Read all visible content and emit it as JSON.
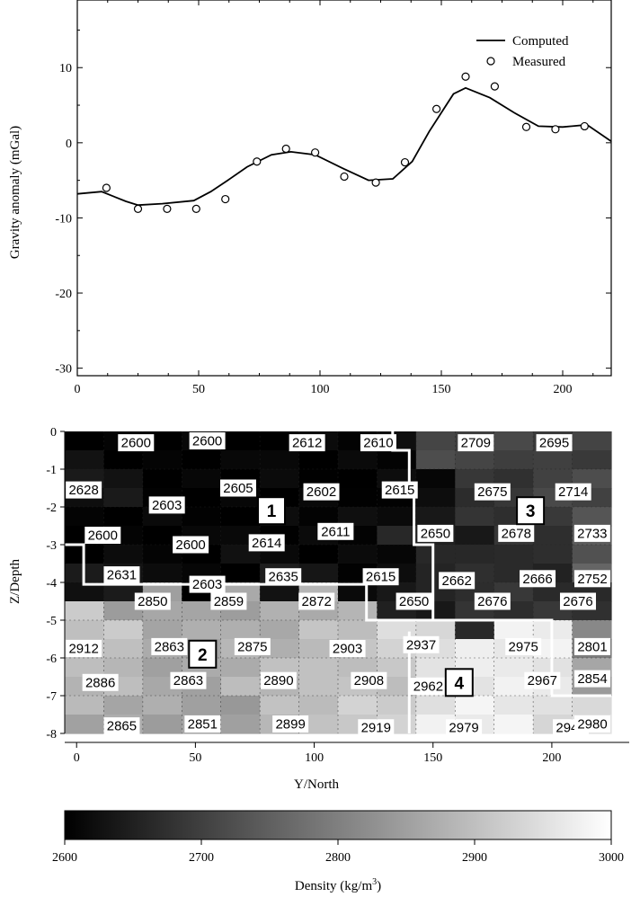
{
  "chart_data": [
    {
      "type": "line",
      "ylabel": "Gravity anomaly (mGal)",
      "xlim": [
        0,
        220
      ],
      "ylim": [
        -31,
        19
      ],
      "x_ticks": [
        "0",
        "50",
        "100",
        "150",
        "200"
      ],
      "y_ticks": [
        "10",
        "0",
        "-10",
        "-20",
        "-30"
      ],
      "legend": {
        "position": "top-right",
        "computed_label": "Computed",
        "measured_label": "Measured"
      },
      "series": [
        {
          "name": "Computed",
          "style": "line",
          "x": [
            0,
            10,
            20,
            25,
            35,
            48,
            55,
            62,
            70,
            80,
            88,
            98,
            110,
            120,
            130,
            138,
            145,
            150,
            155,
            160,
            170,
            180,
            190,
            200,
            210,
            220
          ],
          "y": [
            -6.8,
            -6.5,
            -7.8,
            -8.3,
            -8.1,
            -7.7,
            -6.5,
            -5.0,
            -3.2,
            -1.6,
            -1.2,
            -1.6,
            -3.5,
            -5.0,
            -4.8,
            -2.5,
            1.5,
            4.0,
            6.5,
            7.3,
            6.0,
            4.0,
            2.2,
            2.1,
            2.4,
            0.2
          ]
        },
        {
          "name": "Measured",
          "style": "scatter",
          "x": [
            12,
            25,
            37,
            49,
            61,
            74,
            86,
            98,
            110,
            123,
            135,
            148,
            160,
            172,
            185,
            197,
            209
          ],
          "y": [
            -6.0,
            -8.8,
            -8.8,
            -8.8,
            -7.5,
            -2.5,
            -0.8,
            -1.3,
            -4.5,
            -5.3,
            -2.6,
            4.5,
            8.8,
            7.5,
            2.1,
            1.8,
            2.2
          ]
        }
      ]
    },
    {
      "type": "heatmap",
      "xlabel": "Y/North",
      "ylabel": "Z/Depth",
      "xlim": [
        -5,
        225
      ],
      "ylim": [
        0,
        -8
      ],
      "x_ticks": [
        "0",
        "50",
        "100",
        "150",
        "200"
      ],
      "y_ticks": [
        "0",
        "-1",
        "-2",
        "-3",
        "-4",
        "-5",
        "-6",
        "-7",
        "-8"
      ],
      "cells": [
        {
          "x": 25,
          "z": -0.3,
          "v": 2600,
          "label": "2600"
        },
        {
          "x": 55,
          "z": -0.25,
          "v": 2600,
          "label": "2600"
        },
        {
          "x": 97,
          "z": -0.3,
          "v": 2612,
          "label": "2612"
        },
        {
          "x": 127,
          "z": -0.3,
          "v": 2610,
          "label": "2610"
        },
        {
          "x": 168,
          "z": -0.3,
          "v": 2709,
          "label": "2709"
        },
        {
          "x": 201,
          "z": -0.3,
          "v": 2695,
          "label": "2695"
        },
        {
          "x": 3,
          "z": -1.55,
          "v": 2628,
          "label": "2628"
        },
        {
          "x": 38,
          "z": -1.95,
          "v": 2603,
          "label": "2603"
        },
        {
          "x": 68,
          "z": -1.5,
          "v": 2605,
          "label": "2605"
        },
        {
          "x": 103,
          "z": -1.6,
          "v": 2602,
          "label": "2602"
        },
        {
          "x": 136,
          "z": -1.55,
          "v": 2615,
          "label": "2615"
        },
        {
          "x": 175,
          "z": -1.6,
          "v": 2675,
          "label": "2675"
        },
        {
          "x": 209,
          "z": -1.6,
          "v": 2714,
          "label": "2714"
        },
        {
          "x": 11,
          "z": -2.75,
          "v": 2600,
          "label": "2600"
        },
        {
          "x": 48,
          "z": -3.0,
          "v": 2600,
          "label": "2600"
        },
        {
          "x": 80,
          "z": -2.95,
          "v": 2614,
          "label": "2614"
        },
        {
          "x": 109,
          "z": -2.65,
          "v": 2611,
          "label": "2611"
        },
        {
          "x": 151,
          "z": -2.7,
          "v": 2650,
          "label": "2650"
        },
        {
          "x": 185,
          "z": -2.7,
          "v": 2678,
          "label": "2678"
        },
        {
          "x": 217,
          "z": -2.7,
          "v": 2733,
          "label": "2733"
        },
        {
          "x": 19,
          "z": -3.8,
          "v": 2631,
          "label": "2631"
        },
        {
          "x": 55,
          "z": -4.05,
          "v": 2603,
          "label": "2603"
        },
        {
          "x": 87,
          "z": -3.85,
          "v": 2635,
          "label": "2635"
        },
        {
          "x": 128,
          "z": -3.85,
          "v": 2615,
          "label": "2615"
        },
        {
          "x": 160,
          "z": -3.95,
          "v": 2662,
          "label": "2662"
        },
        {
          "x": 194,
          "z": -3.9,
          "v": 2666,
          "label": "2666"
        },
        {
          "x": 224,
          "z": -3.9,
          "v": 2752,
          "label": "2752"
        },
        {
          "x": 32,
          "z": -4.5,
          "v": 2850,
          "label": "2850"
        },
        {
          "x": 64,
          "z": -4.5,
          "v": 2859,
          "label": "2859"
        },
        {
          "x": 101,
          "z": -4.5,
          "v": 2872,
          "label": "2872"
        },
        {
          "x": 142,
          "z": -4.5,
          "v": 2650,
          "label": "2650"
        },
        {
          "x": 175,
          "z": -4.5,
          "v": 2676,
          "label": "2676"
        },
        {
          "x": 211,
          "z": -4.5,
          "v": 2676,
          "label": "2676"
        },
        {
          "x": 3,
          "z": -5.75,
          "v": 2912,
          "label": "2912"
        },
        {
          "x": 39,
          "z": -5.7,
          "v": 2863,
          "label": "2863"
        },
        {
          "x": 74,
          "z": -5.7,
          "v": 2875,
          "label": "2875"
        },
        {
          "x": 114,
          "z": -5.75,
          "v": 2903,
          "label": "2903"
        },
        {
          "x": 145,
          "z": -5.65,
          "v": 2937,
          "label": "2937"
        },
        {
          "x": 188,
          "z": -5.7,
          "v": 2975,
          "label": "2975"
        },
        {
          "x": 220,
          "z": -5.7,
          "v": 2801,
          "label": "2801"
        },
        {
          "x": 10,
          "z": -6.65,
          "v": 2886,
          "label": "2886"
        },
        {
          "x": 47,
          "z": -6.6,
          "v": 2863,
          "label": "2863"
        },
        {
          "x": 85,
          "z": -6.6,
          "v": 2890,
          "label": "2890"
        },
        {
          "x": 123,
          "z": -6.6,
          "v": 2908,
          "label": "2908"
        },
        {
          "x": 148,
          "z": -6.75,
          "v": 2962,
          "label": "2962"
        },
        {
          "x": 196,
          "z": -6.6,
          "v": 2967,
          "label": "2967"
        },
        {
          "x": 226,
          "z": -6.55,
          "v": 2854,
          "label": "2854"
        },
        {
          "x": 19,
          "z": -7.8,
          "v": 2865,
          "label": "2865"
        },
        {
          "x": 53,
          "z": -7.75,
          "v": 2851,
          "label": "2851"
        },
        {
          "x": 90,
          "z": -7.75,
          "v": 2899,
          "label": "2899"
        },
        {
          "x": 126,
          "z": -7.85,
          "v": 2919,
          "label": "2919"
        },
        {
          "x": 163,
          "z": -7.85,
          "v": 2979,
          "label": "2979"
        },
        {
          "x": 208,
          "z": -7.85,
          "v": 2941,
          "label": "2941"
        },
        {
          "x": 233,
          "z": -7.75,
          "v": 2980,
          "label": "2980"
        }
      ],
      "zones": [
        {
          "label": "1",
          "x": 82,
          "z": -2.1
        },
        {
          "label": "2",
          "x": 53,
          "z": -5.9
        },
        {
          "label": "3",
          "x": 191,
          "z": -2.1
        },
        {
          "label": "4",
          "x": 161,
          "z": -6.65
        }
      ],
      "colorbar": {
        "label_text": "Density (kg/m",
        "label_sup": "3",
        "label_close": ")",
        "range": [
          2600,
          3000
        ],
        "ticks": [
          "2600",
          "2700",
          "2800",
          "2900",
          "3000"
        ],
        "cmap": [
          "#000000",
          "#ffffff"
        ]
      }
    }
  ]
}
